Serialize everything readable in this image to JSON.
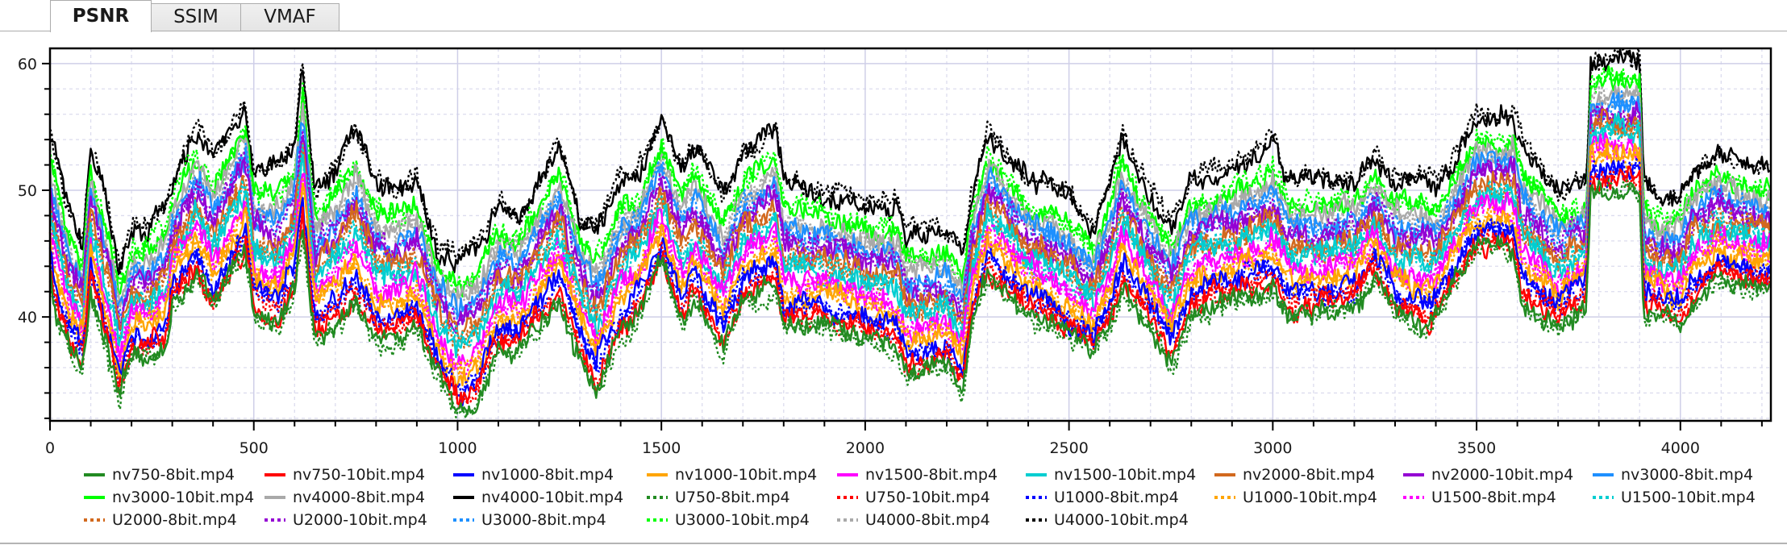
{
  "tabs": [
    {
      "label": "PSNR",
      "active": true
    },
    {
      "label": "SSIM",
      "active": false
    },
    {
      "label": "VMAF",
      "active": false
    }
  ],
  "chart_data": {
    "type": "line",
    "title": "",
    "metric": "PSNR",
    "xlabel": "",
    "ylabel": "",
    "xlim": [
      0,
      4222
    ],
    "ylim": [
      31.8,
      61.2
    ],
    "x_ticks_major": [
      0,
      500,
      1000,
      1500,
      2000,
      2500,
      3000,
      3500,
      4000
    ],
    "x_tick_labels": [
      "0",
      "500",
      "1000",
      "1500",
      "2000",
      "2500",
      "3000",
      "3500",
      "4000"
    ],
    "x_minor_step": 100,
    "y_ticks_major": [
      40,
      50,
      60
    ],
    "y_tick_labels": [
      "40",
      "50",
      "60"
    ],
    "y_minor_step": 2,
    "grid": {
      "major": true,
      "minor": true,
      "major_color": "#cfcfe8",
      "minor_color": "#dcdcee"
    },
    "legend_position": "bottom",
    "frame_step": 4,
    "envelope_note": "Per-frame PSNR of each encode estimated as: bottom + level*(top-bottom) + noise; top/bottom read from the plotted band.",
    "envelope": {
      "x": [
        0,
        10,
        50,
        80,
        100,
        150,
        170,
        200,
        240,
        280,
        300,
        360,
        400,
        460,
        480,
        500,
        560,
        600,
        620,
        650,
        700,
        750,
        800,
        850,
        900,
        950,
        1000,
        1050,
        1100,
        1150,
        1250,
        1300,
        1340,
        1400,
        1450,
        1500,
        1550,
        1580,
        1650,
        1700,
        1780,
        1800,
        1900,
        2000,
        2080,
        2100,
        2200,
        2240,
        2260,
        2300,
        2400,
        2500,
        2560,
        2600,
        2630,
        2700,
        2750,
        2800,
        2900,
        3000,
        3040,
        3100,
        3200,
        3250,
        3300,
        3380,
        3400,
        3500,
        3590,
        3610,
        3700,
        3740,
        3770,
        3780,
        3900,
        3910,
        3950,
        4000,
        4030,
        4100,
        4150,
        4222
      ],
      "top": [
        55,
        54,
        48,
        46,
        54,
        48,
        44,
        47,
        47,
        49,
        51,
        55,
        53,
        56,
        57,
        52,
        52,
        54,
        60,
        50,
        52,
        55,
        51,
        50,
        51,
        46,
        45,
        46,
        49,
        48,
        54,
        48,
        47,
        51,
        52,
        56,
        52,
        54,
        50,
        53,
        55,
        51,
        50,
        49,
        49,
        47,
        47,
        45,
        50,
        55,
        51,
        50,
        47,
        51,
        55,
        50,
        48,
        51,
        52,
        54,
        51,
        51,
        51,
        53,
        51,
        51,
        50,
        56,
        56,
        54,
        50,
        51,
        51,
        60.5,
        60.5,
        51,
        49,
        50,
        52,
        53,
        52,
        52
      ],
      "bottom": [
        43,
        40,
        37,
        36,
        42,
        36,
        33,
        37,
        37,
        37,
        41,
        43,
        40,
        44,
        45,
        40,
        39,
        42,
        47,
        38,
        39,
        41,
        38,
        38,
        39,
        35,
        32,
        33,
        37,
        37,
        41,
        37,
        34,
        38,
        40,
        44,
        39,
        41,
        37,
        41,
        42,
        39,
        39,
        38,
        37,
        35,
        36,
        34,
        39,
        43,
        40,
        38,
        37,
        39,
        42,
        39,
        36,
        40,
        41,
        42,
        40,
        40,
        41,
        43,
        40,
        39,
        40,
        45,
        45,
        41,
        39,
        40,
        41,
        50,
        50,
        40,
        40,
        39,
        41,
        43,
        42,
        42
      ]
    },
    "series": [
      {
        "name": "nv750-8bit.mp4",
        "color": "#228B22",
        "style": "solid",
        "level": 0.03
      },
      {
        "name": "nv750-10bit.mp4",
        "color": "#FF0000",
        "style": "solid",
        "level": 0.08
      },
      {
        "name": "nv1000-8bit.mp4",
        "color": "#0000FF",
        "style": "solid",
        "level": 0.17
      },
      {
        "name": "nv1000-10bit.mp4",
        "color": "#FFA500",
        "style": "solid",
        "level": 0.25
      },
      {
        "name": "nv1500-8bit.mp4",
        "color": "#FF00FF",
        "style": "solid",
        "level": 0.34
      },
      {
        "name": "nv1500-10bit.mp4",
        "color": "#00CED1",
        "style": "solid",
        "level": 0.42
      },
      {
        "name": "nv2000-8bit.mp4",
        "color": "#D2691E",
        "style": "solid",
        "level": 0.5
      },
      {
        "name": "nv2000-10bit.mp4",
        "color": "#9400D3",
        "style": "solid",
        "level": 0.57
      },
      {
        "name": "nv3000-8bit.mp4",
        "color": "#1E90FF",
        "style": "solid",
        "level": 0.65
      },
      {
        "name": "nv3000-10bit.mp4",
        "color": "#00FF00",
        "style": "solid",
        "level": 0.8
      },
      {
        "name": "nv4000-8bit.mp4",
        "color": "#A9A9A9",
        "style": "solid",
        "level": 0.73
      },
      {
        "name": "nv4000-10bit.mp4",
        "color": "#000000",
        "style": "solid",
        "level": 0.97
      },
      {
        "name": "U750-8bit.mp4",
        "color": "#228B22",
        "style": "dotted",
        "level": 0.0
      },
      {
        "name": "U750-10bit.mp4",
        "color": "#FF0000",
        "style": "dotted",
        "level": 0.1
      },
      {
        "name": "U1000-8bit.mp4",
        "color": "#0000FF",
        "style": "dotted",
        "level": 0.15
      },
      {
        "name": "U1000-10bit.mp4",
        "color": "#FFA500",
        "style": "dotted",
        "level": 0.27
      },
      {
        "name": "U1500-8bit.mp4",
        "color": "#FF00FF",
        "style": "dotted",
        "level": 0.32
      },
      {
        "name": "U1500-10bit.mp4",
        "color": "#00CED1",
        "style": "dotted",
        "level": 0.44
      },
      {
        "name": "U2000-8bit.mp4",
        "color": "#D2691E",
        "style": "dotted",
        "level": 0.48
      },
      {
        "name": "U2000-10bit.mp4",
        "color": "#9400D3",
        "style": "dotted",
        "level": 0.59
      },
      {
        "name": "U3000-8bit.mp4",
        "color": "#1E90FF",
        "style": "dotted",
        "level": 0.63
      },
      {
        "name": "U3000-10bit.mp4",
        "color": "#00FF00",
        "style": "dotted",
        "level": 0.82
      },
      {
        "name": "U4000-8bit.mp4",
        "color": "#A9A9A9",
        "style": "dotted",
        "level": 0.71
      },
      {
        "name": "U4000-10bit.mp4",
        "color": "#000000",
        "style": "dotted",
        "level": 1.0
      }
    ],
    "noise_amplitude": 0.9
  }
}
